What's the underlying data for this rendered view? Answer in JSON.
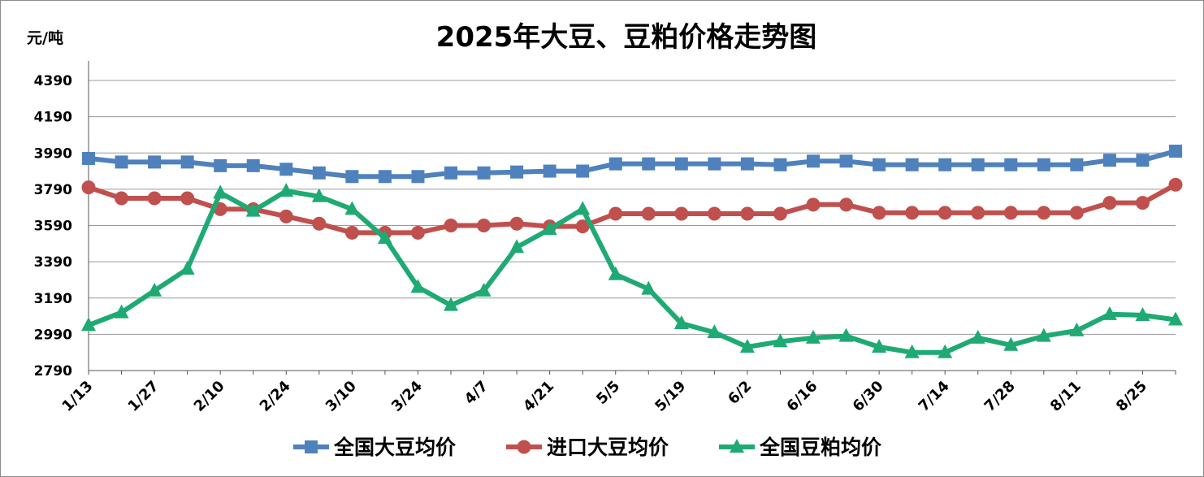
{
  "chart_data": {
    "type": "line",
    "title": "2025年大豆、豆粕价格走势图",
    "ylabel": "元/吨",
    "ylim": [
      2790,
      4390
    ],
    "yticks": [
      2790,
      2990,
      3190,
      3390,
      3590,
      3790,
      3990,
      4190,
      4390
    ],
    "x": [
      "1/13",
      "1/20",
      "1/27",
      "2/3",
      "2/10",
      "2/17",
      "2/24",
      "3/3",
      "3/10",
      "3/17",
      "3/24",
      "3/31",
      "4/7",
      "4/14",
      "4/21",
      "4/28",
      "5/5",
      "5/12",
      "5/19",
      "5/26",
      "6/2",
      "6/9",
      "6/16",
      "6/23",
      "6/30",
      "7/7",
      "7/14",
      "7/21",
      "7/28",
      "8/4",
      "8/11",
      "8/18",
      "8/25",
      "9/1"
    ],
    "xtick_labels": [
      "1/13",
      "1/27",
      "2/10",
      "2/24",
      "3/10",
      "3/24",
      "4/7",
      "4/21",
      "5/5",
      "5/19",
      "6/2",
      "6/16",
      "6/30",
      "7/14",
      "7/28",
      "8/11",
      "8/25"
    ],
    "legend_position": "bottom",
    "grid": true,
    "series": [
      {
        "name": "全国大豆均价",
        "color": "#4f81bd",
        "marker": "square",
        "values": [
          3960,
          3940,
          3940,
          3940,
          3920,
          3920,
          3900,
          3880,
          3860,
          3860,
          3860,
          3880,
          3880,
          3885,
          3890,
          3890,
          3930,
          3930,
          3930,
          3930,
          3930,
          3925,
          3945,
          3945,
          3925,
          3925,
          3925,
          3925,
          3925,
          3925,
          3925,
          3950,
          3950,
          4000
        ]
      },
      {
        "name": "进口大豆均价",
        "color": "#c0504d",
        "marker": "circle",
        "values": [
          3800,
          3740,
          3740,
          3740,
          3680,
          3680,
          3640,
          3600,
          3550,
          3550,
          3550,
          3590,
          3590,
          3600,
          3585,
          3585,
          3655,
          3655,
          3655,
          3655,
          3655,
          3655,
          3705,
          3705,
          3660,
          3660,
          3660,
          3660,
          3660,
          3660,
          3660,
          3715,
          3715,
          3815
        ]
      },
      {
        "name": "全国豆粕均价",
        "color": "#1faa74",
        "marker": "triangle",
        "values": [
          3040,
          3110,
          3230,
          3350,
          3770,
          3670,
          3780,
          3750,
          3680,
          3520,
          3250,
          3150,
          3230,
          3470,
          3570,
          3680,
          3320,
          3240,
          3050,
          3000,
          2920,
          2950,
          2970,
          2980,
          2920,
          2890,
          2890,
          2970,
          2930,
          2980,
          3010,
          3100,
          3095,
          3070
        ]
      }
    ]
  }
}
